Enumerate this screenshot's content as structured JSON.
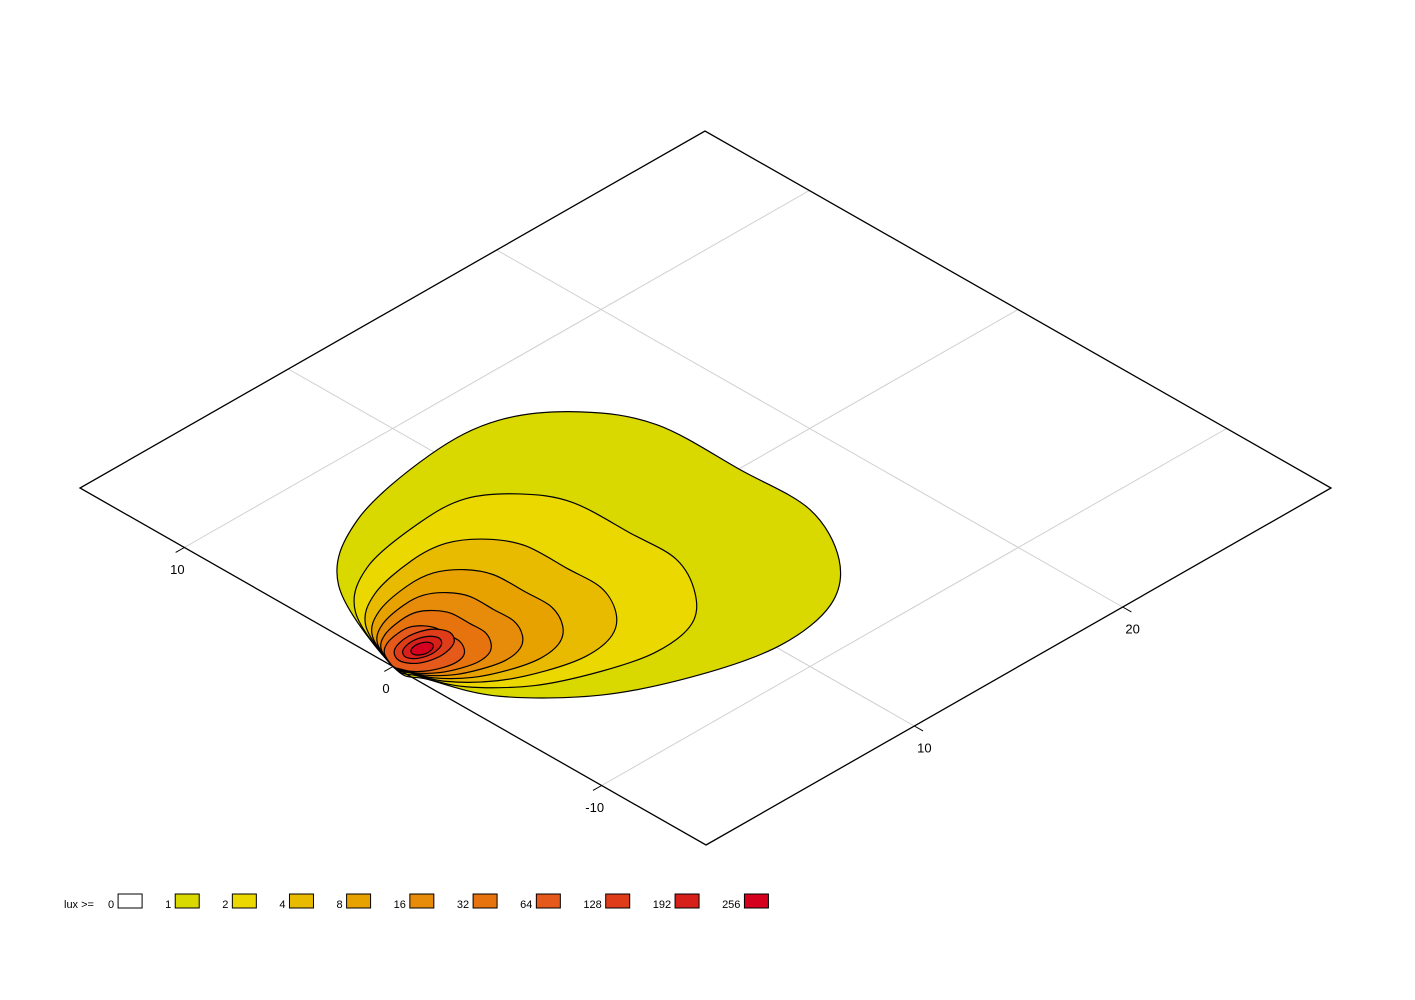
{
  "chart_data": {
    "type": "contour",
    "xlim": [
      0,
      30
    ],
    "ylim": [
      -15,
      15
    ],
    "xticks": [
      10,
      20
    ],
    "yticks": [
      -10,
      0,
      10
    ],
    "grid": true,
    "legend_title": "lux >=",
    "levels": [
      {
        "value": 0,
        "color": "#ffffff"
      },
      {
        "value": 1,
        "color": "#d9d900",
        "x": [
          0,
          2.1,
          5.3,
          9.8,
          12.9,
          15.2,
          16.5,
          16.6,
          16.6,
          15.2,
          13.1,
          10.2,
          7.0,
          3.8,
          1.3,
          0.3
        ],
        "y": [
          0,
          4.7,
          7.0,
          8.0,
          7.8,
          6.2,
          3.8,
          -0.1,
          -3.4,
          -6.2,
          -7.9,
          -8.4,
          -7.7,
          -6.2,
          -3.8,
          -1.4
        ]
      },
      {
        "value": 2,
        "color": "#ebd800",
        "x": [
          0,
          1.4,
          3.6,
          6.7,
          8.8,
          10.3,
          11.2,
          11.3,
          11.3,
          10.3,
          8.9,
          6.9,
          4.8,
          2.6,
          0.9,
          0.2
        ],
        "y": [
          0,
          3.2,
          4.8,
          5.4,
          5.3,
          4.2,
          2.6,
          -0.1,
          -2.3,
          -4.2,
          -5.4,
          -5.7,
          -5.2,
          -4.2,
          -2.6,
          -1.0
        ]
      },
      {
        "value": 4,
        "color": "#e9bb00",
        "x": [
          0,
          1.05,
          2.65,
          4.9,
          6.45,
          7.6,
          8.25,
          8.3,
          8.3,
          7.6,
          6.55,
          5.1,
          3.5,
          1.9,
          0.65,
          0.15
        ],
        "y": [
          0,
          2.35,
          3.5,
          4,
          3.9,
          3.1,
          1.9,
          -0.05,
          -1.7,
          -3.1,
          -3.95,
          -4.2,
          -3.85,
          -3.1,
          -1.9,
          -0.7
        ]
      },
      {
        "value": 8,
        "color": "#e8a200",
        "x": [
          0,
          0.8,
          2.01,
          3.72,
          4.9,
          5.78,
          6.27,
          6.31,
          6.31,
          5.78,
          4.98,
          3.88,
          2.66,
          1.44,
          0.49,
          0.11
        ],
        "y": [
          0,
          1.79,
          2.66,
          3.04,
          2.96,
          2.36,
          1.44,
          -0.04,
          -1.29,
          -2.36,
          -3.0,
          -3.19,
          -2.93,
          -2.36,
          -1.44,
          -0.53
        ]
      },
      {
        "value": 16,
        "color": "#e78b0a",
        "x": [
          0,
          0.61,
          1.54,
          2.84,
          3.74,
          4.41,
          4.79,
          4.81,
          4.81,
          4.41,
          3.8,
          2.96,
          2.03,
          1.1,
          0.38,
          0.09
        ],
        "y": [
          0,
          1.36,
          2.03,
          2.32,
          2.26,
          1.8,
          1.1,
          -0.03,
          -0.99,
          -1.8,
          -2.29,
          -2.44,
          -2.23,
          -1.8,
          -1.1,
          -0.41
        ]
      },
      {
        "value": 32,
        "color": "#e6730d",
        "x": [
          0,
          0.46,
          1.17,
          2.16,
          2.84,
          3.34,
          3.63,
          3.65,
          3.65,
          3.34,
          2.88,
          2.24,
          1.54,
          0.84,
          0.29,
          0.07
        ],
        "y": [
          0,
          1.03,
          1.54,
          1.76,
          1.72,
          1.36,
          0.84,
          -0.02,
          -0.75,
          -1.36,
          -1.74,
          -1.85,
          -1.69,
          -1.36,
          -0.84,
          -0.31
        ]
      },
      {
        "value": 64,
        "color": "#e55a1a",
        "x": [
          0,
          0.34,
          0.85,
          1.57,
          2.06,
          2.43,
          2.64,
          2.66,
          2.66,
          2.43,
          2.1,
          1.63,
          1.12,
          0.61,
          0.21,
          0.05
        ],
        "y": [
          0,
          0.75,
          1.12,
          1.28,
          1.25,
          0.99,
          0.61,
          -0.02,
          -0.54,
          -0.99,
          -1.26,
          -1.34,
          -1.23,
          -0.99,
          -0.61,
          -0.22
        ]
      },
      {
        "value": 128,
        "color": "#df3c1a",
        "x": [
          2.8,
          2.45,
          1.6,
          0.75,
          0.4,
          0.75,
          1.6,
          2.45
        ],
        "y": [
          0.1,
          0.67,
          0.9,
          0.67,
          0.1,
          -0.47,
          -0.7,
          -0.47
        ]
      },
      {
        "value": 192,
        "color": "#d8201a",
        "x": [
          2.3,
          2.07,
          1.5,
          0.93,
          0.7,
          0.93,
          1.5,
          2.07
        ],
        "y": [
          0.1,
          0.45,
          0.6,
          0.45,
          0.1,
          -0.25,
          -0.4,
          -0.25
        ]
      },
      {
        "value": 256,
        "color": "#d4001e",
        "x": [
          1.9,
          1.77,
          1.45,
          1.13,
          1.0,
          1.13,
          1.45,
          1.77
        ],
        "y": [
          0.05,
          0.26,
          0.35,
          0.26,
          0.05,
          -0.16,
          -0.25,
          -0.16
        ]
      }
    ]
  }
}
